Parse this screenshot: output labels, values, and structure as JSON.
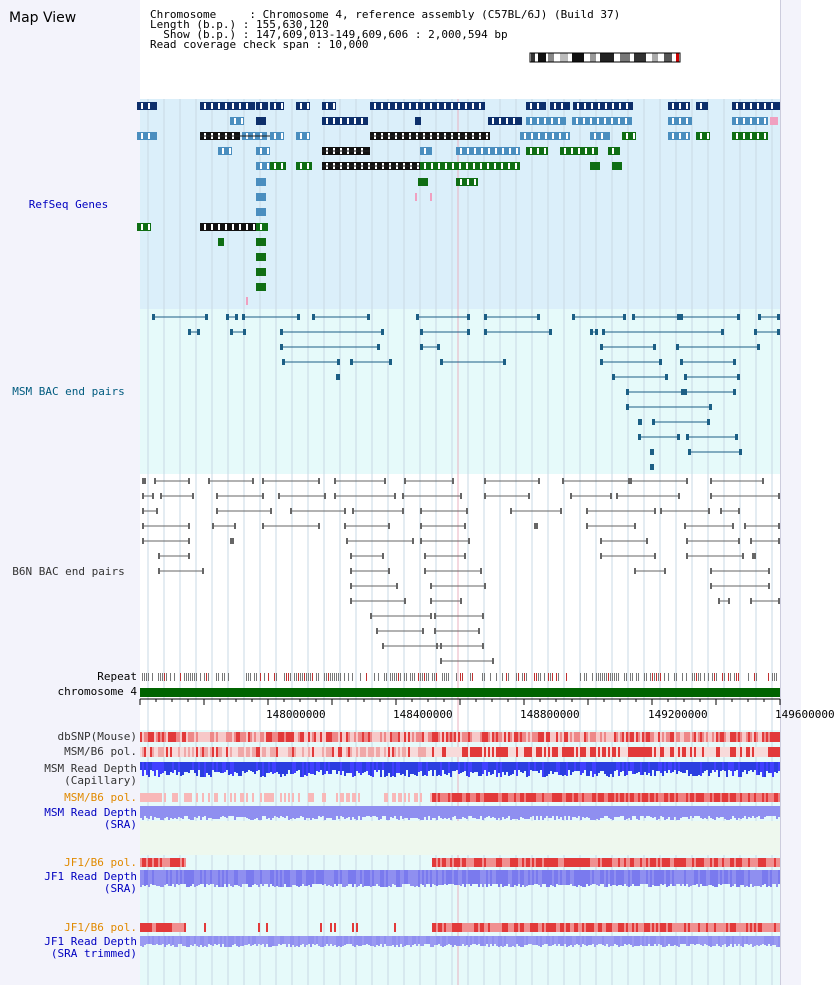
{
  "title": "Map View",
  "info": {
    "line1": "Chromosome     : Chromosome 4, reference assembly (C57BL/6J) (Build 37)",
    "line2": "Length (b.p.) : 155,630,120",
    "line3": "  Show (b.p.) : 147,609,013-149,609,606 : 2,000,594 bp",
    "line4": "Read coverage check span : 10,000"
  },
  "labels": {
    "refseq": "RefSeq Genes",
    "msm_bac": "MSM BAC end pairs",
    "b6n_bac": "B6N BAC end pairs",
    "repeat": "Repeat",
    "chromosome": "chromosome 4",
    "dbsnp": "dbSNP(Mouse)",
    "msm_pol1": "MSM/B6 pol.",
    "msm_depth_cap": "MSM Read Depth\n(Capillary)",
    "msm_pol2": "MSM/B6 pol.",
    "msm_depth_sra": "MSM Read Depth\n(SRA)",
    "jf1_pol1": "JF1/B6 pol.",
    "jf1_depth_sra": "JF1 Read Depth\n(SRA)",
    "jf1_pol2": "JF1/B6 pol.",
    "jf1_depth_trim": "JF1 Read Depth\n(SRA trimmed)"
  },
  "axis": {
    "ticks": [
      "148000000",
      "148400000",
      "148800000",
      "149200000",
      "149600000"
    ]
  },
  "colors": {
    "refseq_bg": "#dbeffa",
    "bac_bg": "#e6fafa",
    "refseq_dark": "#0d2f6b",
    "refseq_mid": "#4a8ebf",
    "refseq_green": "#0f6e14",
    "chromosome_bar": "#006400",
    "msm_line": "#1c5f85",
    "b6n_line": "#666666",
    "snp_red": "#e23a3a",
    "depth_blue": "#2b3ee0",
    "depth_light": "#8f8ff0"
  }
}
